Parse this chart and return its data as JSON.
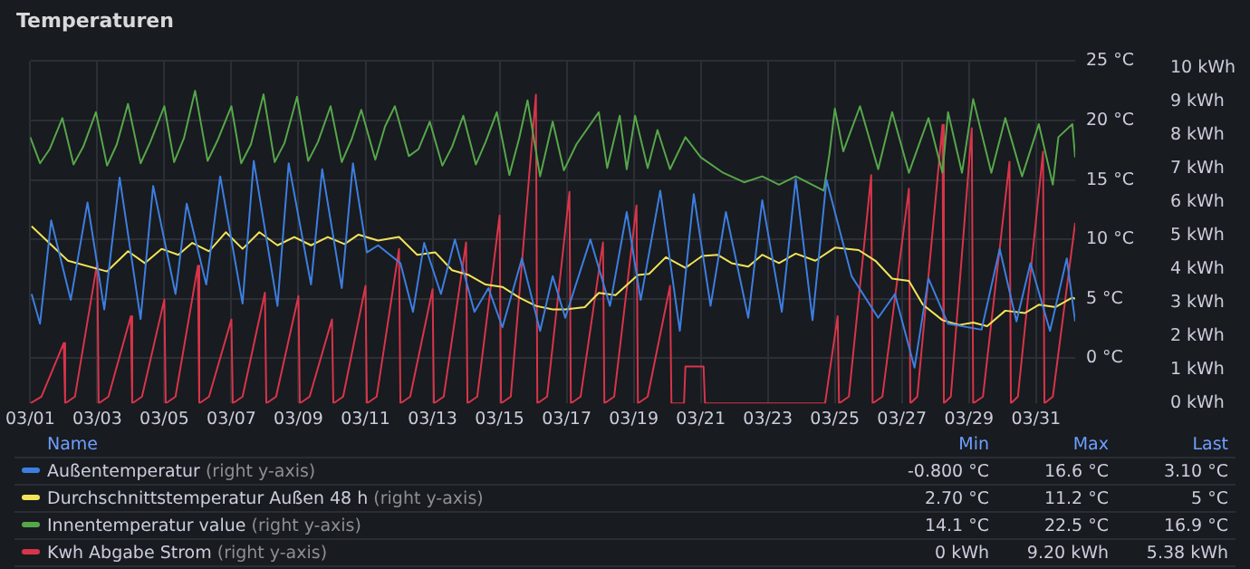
{
  "chart_data": {
    "type": "line",
    "title": "Temperaturen",
    "legend": "bottom",
    "grid": true,
    "marker": "none",
    "line_style": "solid",
    "xlim": [
      "--03-01",
      "--04-01T04:00"
    ],
    "xticks": [
      {
        "value": "--03-01",
        "label": "03/01"
      },
      {
        "value": "--03-03",
        "label": "03/03"
      },
      {
        "value": "--03-05",
        "label": "03/05"
      },
      {
        "value": "--03-07",
        "label": "03/07"
      },
      {
        "value": "--03-09",
        "label": "03/09"
      },
      {
        "value": "--03-11",
        "label": "03/11"
      },
      {
        "value": "--03-13",
        "label": "03/13"
      },
      {
        "value": "--03-15",
        "label": "03/15"
      },
      {
        "value": "--03-17",
        "label": "03/17"
      },
      {
        "value": "--03-19",
        "label": "03/19"
      },
      {
        "value": "--03-21",
        "label": "03/21"
      },
      {
        "value": "--03-23",
        "label": "03/23"
      },
      {
        "value": "--03-25",
        "label": "03/25"
      },
      {
        "value": "--03-27",
        "label": "03/27"
      },
      {
        "value": "--03-29",
        "label": "03/29"
      },
      {
        "value": "--03-31",
        "label": "03/31"
      }
    ],
    "ylim": [
      -3.8,
      25
    ],
    "yticks": [
      {
        "value": 0,
        "label": "0 °C"
      },
      {
        "value": 5,
        "label": "5 °C"
      },
      {
        "value": 10,
        "label": "10 °C"
      },
      {
        "value": 15,
        "label": "15 °C"
      },
      {
        "value": 20,
        "label": "20 °C"
      },
      {
        "value": 25,
        "label": "25 °C"
      }
    ],
    "y2lim": [
      0,
      10.2
    ],
    "y2ticks": [
      {
        "value": 0,
        "label": "0 kWh"
      },
      {
        "value": 1,
        "label": "1 kWh"
      },
      {
        "value": 2,
        "label": "2 kWh"
      },
      {
        "value": 3,
        "label": "3 kWh"
      },
      {
        "value": 4,
        "label": "4 kWh"
      },
      {
        "value": 5,
        "label": "5 kWh"
      },
      {
        "value": 6,
        "label": "6 kWh"
      },
      {
        "value": 7,
        "label": "7 kWh"
      },
      {
        "value": 8,
        "label": "8 kWh"
      },
      {
        "value": 9,
        "label": "9 kWh"
      },
      {
        "value": 10,
        "label": "10 kWh"
      }
    ],
    "annotations": [
      "Name",
      "Min",
      "Max",
      "Last",
      "-0.800 °C",
      "16.6 °C",
      "3.10 °C",
      "2.70 °C",
      "11.2 °C",
      "5 °C",
      "14.1 °C",
      "22.5 °C",
      "16.9 °C",
      "0 kWh",
      "9.20 kWh",
      "5.38 kWh"
    ],
    "series": [
      {
        "name": "Außentemperatur (right y-axis)",
        "color": "#3d7ee0",
        "x": [
          "--03-01T01:00",
          "--03-01T07:00",
          "--03-01T15:00",
          "--03-02T05:00",
          "--03-02T17:00",
          "--03-03T05:00",
          "--03-03T16:00",
          "--03-04T07:00",
          "--03-04T16:00",
          "--03-05T08:00",
          "--03-05T16:00",
          "--03-06T06:00",
          "--03-06T16:00",
          "--03-07T08:00",
          "--03-07T16:00",
          "--03-08T09:00",
          "--03-08T17:00",
          "--03-09T09:00",
          "--03-09T17:00",
          "--03-10T07:00",
          "--03-10T15:00",
          "--03-11T01:00",
          "--03-11T09:00",
          "--03-12T01:00",
          "--03-12T10:00",
          "--03-12T18:00",
          "--03-13T06:00",
          "--03-13T16:00",
          "--03-14T06:00",
          "--03-14T16:00",
          "--03-15T02:00",
          "--03-15T16:00",
          "--03-16T05:00",
          "--03-16T14:00",
          "--03-16T23:00",
          "--03-17T17:00",
          "--03-18T07:00",
          "--03-18T19:00",
          "--03-19T05:00",
          "--03-19T19:00",
          "--03-20T09:00",
          "--03-20T19:00",
          "--03-21T07:00",
          "--03-21T18:00",
          "--03-22T10:00",
          "--03-22T20:00",
          "--03-23T10:00",
          "--03-23T20:00",
          "--03-24T08:00",
          "--03-24T18:00",
          "--03-25T12:00",
          "--03-26T07:00",
          "--03-26T19:00",
          "--03-27T09:00",
          "--03-27T19:00",
          "--03-28T09:00",
          "--03-29T09:00",
          "--03-29T22:00",
          "--03-30T10:00",
          "--03-30T20:00",
          "--03-31T10:00",
          "--03-31T22:00",
          "--04-01T04:00"
        ],
        "values": [
          5.4,
          2.9,
          11.6,
          4.9,
          13.1,
          4.1,
          15.2,
          3.3,
          14.5,
          5.4,
          13.0,
          6.2,
          15.3,
          4.6,
          16.6,
          4.4,
          16.4,
          6.2,
          15.9,
          5.9,
          16.4,
          8.9,
          9.5,
          8.0,
          3.9,
          9.7,
          5.4,
          10.0,
          3.9,
          5.9,
          2.6,
          8.4,
          2.3,
          6.9,
          3.4,
          10.0,
          4.4,
          12.3,
          4.9,
          14.1,
          2.3,
          13.8,
          4.4,
          12.3,
          3.4,
          13.3,
          3.9,
          15.1,
          3.2,
          15.0,
          6.9,
          3.4,
          5.4,
          -0.8,
          6.7,
          2.9,
          2.4,
          9.2,
          3.1,
          8.0,
          2.3,
          8.4,
          3.1
        ]
      },
      {
        "name": "Durchschnittstemperatur Außen 48 h (right y-axis)",
        "color": "#f2e35a",
        "x": [
          "--03-01T01:00",
          "--03-02T03:00",
          "--03-03T07:00",
          "--03-03T22:00",
          "--03-04T10:00",
          "--03-04T22:00",
          "--03-05T10:00",
          "--03-05T20:00",
          "--03-06T08:00",
          "--03-06T20:00",
          "--03-07T08:00",
          "--03-07T20:00",
          "--03-08T09:00",
          "--03-08T21:00",
          "--03-09T09:00",
          "--03-09T21:00",
          "--03-10T09:00",
          "--03-10T19:00",
          "--03-11T09:00",
          "--03-12T00:00",
          "--03-12T13:00",
          "--03-13T02:00",
          "--03-13T14:00",
          "--03-14T02:00",
          "--03-14T14:00",
          "--03-15T02:00",
          "--03-15T14:00",
          "--03-16T02:00",
          "--03-16T14:00",
          "--03-16T23:00",
          "--03-17T13:00",
          "--03-17T23:00",
          "--03-18T11:00",
          "--03-19T03:00",
          "--03-19T11:00",
          "--03-19T23:00",
          "--03-20T13:00",
          "--03-21T01:00",
          "--03-21T12:00",
          "--03-21T22:00",
          "--03-22T10:00",
          "--03-22T20:00",
          "--03-23T08:00",
          "--03-23T20:00",
          "--03-24T10:00",
          "--03-25T00:00",
          "--03-25T17:00",
          "--03-26T05:00",
          "--03-26T17:00",
          "--03-27T05:00",
          "--03-27T15:00",
          "--03-28T05:00",
          "--03-28T17:00",
          "--03-29T03:00",
          "--03-29T13:00",
          "--03-30T02:00",
          "--03-30T16:00",
          "--03-31T02:00",
          "--03-31T14:00",
          "--04-01T02:00",
          "--04-01T04:00"
        ],
        "values": [
          11.1,
          8.2,
          7.3,
          9.0,
          8.0,
          9.2,
          8.7,
          9.7,
          9.0,
          10.6,
          9.2,
          10.6,
          9.5,
          10.2,
          9.5,
          10.2,
          9.6,
          10.4,
          9.9,
          10.2,
          8.7,
          8.9,
          7.4,
          7.0,
          6.2,
          6.0,
          5.1,
          4.4,
          4.1,
          4.1,
          4.3,
          5.5,
          5.3,
          7.0,
          7.1,
          8.5,
          7.6,
          8.6,
          8.7,
          8.0,
          7.7,
          8.7,
          8.0,
          8.8,
          8.2,
          9.3,
          9.1,
          8.2,
          6.7,
          6.5,
          4.5,
          3.2,
          2.8,
          3.0,
          2.7,
          4.0,
          3.8,
          4.5,
          4.3,
          5.1,
          5.0
        ]
      },
      {
        "name": "Innentemperatur value (right y-axis)",
        "color": "#56a64b",
        "x": [
          "--03-01T00:00",
          "--03-01T07:00",
          "--03-01T14:00",
          "--03-01T23:00",
          "--03-02T07:00",
          "--03-02T14:00",
          "--03-02T23:00",
          "--03-03T07:00",
          "--03-03T14:00",
          "--03-03T22:00",
          "--03-04T07:00",
          "--03-04T14:00",
          "--03-05T00:00",
          "--03-05T07:00",
          "--03-05T14:00",
          "--03-05T22:00",
          "--03-06T07:00",
          "--03-06T14:00",
          "--03-07T00:00",
          "--03-07T07:00",
          "--03-07T14:00",
          "--03-07T23:00",
          "--03-08T07:00",
          "--03-08T14:00",
          "--03-08T23:00",
          "--03-09T07:00",
          "--03-09T14:00",
          "--03-09T23:00",
          "--03-10T07:00",
          "--03-10T14:00",
          "--03-10T21:00",
          "--03-11T07:00",
          "--03-11T14:00",
          "--03-11T21:00",
          "--03-12T07:00",
          "--03-12T14:00",
          "--03-12T22:00",
          "--03-13T07:00",
          "--03-13T14:00",
          "--03-13T22:00",
          "--03-14T07:00",
          "--03-14T14:00",
          "--03-14T22:00",
          "--03-15T07:00",
          "--03-15T14:00",
          "--03-15T20:00",
          "--03-16T05:00",
          "--03-16T14:00",
          "--03-16T22:00",
          "--03-17T07:00",
          "--03-17T23:00",
          "--03-18T05:00",
          "--03-18T14:00",
          "--03-18T19:00",
          "--03-19T01:00",
          "--03-19T10:00",
          "--03-19T17:00",
          "--03-20T02:00",
          "--03-20T13:00",
          "--03-21T00:00",
          "--03-21T16:00",
          "--03-22T07:00",
          "--03-22T20:00",
          "--03-23T08:00",
          "--03-23T20:00",
          "--03-24T16:00",
          "--03-24T20:00",
          "--03-25T00:00",
          "--03-25T06:00",
          "--03-25T18:00",
          "--03-26T07:00",
          "--03-26T17:00",
          "--03-27T05:00",
          "--03-27T19:00",
          "--03-28T05:00",
          "--03-28T09:00",
          "--03-28T19:00",
          "--03-29T03:00",
          "--03-29T16:00",
          "--03-30T02:00",
          "--03-30T14:00",
          "--03-31T02:00",
          "--03-31T12:00",
          "--03-31T16:00",
          "--04-01T02:00",
          "--04-01T04:00"
        ],
        "values": [
          18.6,
          16.4,
          17.6,
          20.2,
          16.3,
          17.8,
          20.7,
          16.2,
          18.0,
          21.4,
          16.4,
          18.2,
          21.2,
          16.5,
          18.5,
          22.5,
          16.6,
          18.3,
          21.2,
          16.4,
          18.0,
          22.2,
          16.5,
          18.1,
          22.0,
          16.6,
          18.2,
          21.2,
          16.5,
          18.4,
          20.9,
          16.7,
          19.5,
          21.2,
          17.0,
          17.6,
          19.9,
          16.2,
          17.8,
          20.4,
          16.3,
          18.2,
          20.7,
          15.4,
          18.5,
          21.7,
          15.3,
          19.9,
          15.8,
          18.0,
          20.7,
          16.0,
          20.4,
          15.9,
          20.4,
          16.0,
          19.2,
          15.9,
          18.6,
          16.9,
          15.6,
          14.8,
          15.3,
          14.6,
          15.3,
          14.1,
          17.1,
          21.0,
          17.4,
          21.2,
          15.9,
          20.7,
          15.6,
          20.2,
          15.6,
          20.7,
          15.6,
          21.8,
          15.6,
          20.2,
          15.3,
          19.7,
          14.6,
          18.6,
          19.7,
          16.9
        ]
      },
      {
        "name": "Kwh Abgabe Strom (right y-axis)",
        "color": "#d8344a",
        "axis": "y2",
        "x": [
          "--03-01T00:00",
          "--03-01T08:00",
          "--03-02T00:00",
          "--03-02T01:00",
          "--03-02T08:00",
          "--03-03T00:00",
          "--03-03T01:00",
          "--03-03T08:00",
          "--03-04T00:00",
          "--03-04T01:00",
          "--03-04T08:00",
          "--03-05T00:00",
          "--03-05T01:00",
          "--03-05T08:00",
          "--03-06T00:00",
          "--03-06T01:00",
          "--03-06T08:00",
          "--03-07T00:00",
          "--03-07T01:00",
          "--03-07T08:00",
          "--03-08T00:00",
          "--03-08T01:00",
          "--03-08T08:00",
          "--03-09T00:00",
          "--03-09T01:00",
          "--03-09T08:00",
          "--03-10T00:00",
          "--03-10T01:00",
          "--03-10T08:00",
          "--03-11T00:00",
          "--03-11T01:00",
          "--03-11T08:00",
          "--03-12T00:00",
          "--03-12T01:00",
          "--03-12T08:00",
          "--03-13T00:00",
          "--03-13T01:00",
          "--03-13T08:00",
          "--03-14T00:00",
          "--03-14T01:00",
          "--03-14T08:00",
          "--03-15T00:00",
          "--03-15T01:00",
          "--03-15T08:00",
          "--03-16T02:00",
          "--03-16T03:00",
          "--03-16T10:00",
          "--03-17T02:00",
          "--03-17T03:00",
          "--03-17T10:00",
          "--03-18T02:00",
          "--03-18T03:00",
          "--03-18T10:00",
          "--03-19T02:00",
          "--03-19T03:00",
          "--03-19T10:00",
          "--03-20T02:00",
          "--03-20T03:00",
          "--03-20T12:00",
          "--03-20T13:00",
          "--03-21T02:00",
          "--03-21T03:00",
          "--03-24T17:00",
          "--03-25T02:00",
          "--03-25T03:00",
          "--03-25T10:00",
          "--03-26T02:00",
          "--03-26T03:00",
          "--03-26T10:00",
          "--03-27T05:00",
          "--03-27T06:00",
          "--03-27T11:00",
          "--03-28T05:00",
          "--03-28T06:00",
          "--03-28T11:00",
          "--03-29T02:00",
          "--03-29T03:00",
          "--03-29T10:00",
          "--03-30T05:00",
          "--03-30T06:00",
          "--03-30T11:00",
          "--03-31T05:00",
          "--03-31T06:00",
          "--03-31T12:00",
          "--04-01T04:00"
        ],
        "values": [
          0,
          0.2,
          1.8,
          0,
          0.2,
          4.2,
          0,
          0.2,
          2.6,
          0,
          0.2,
          3.1,
          0,
          0.2,
          4.1,
          0,
          0.2,
          2.5,
          0,
          0.2,
          3.3,
          0,
          0.2,
          3.2,
          0,
          0.2,
          2.5,
          0,
          0.2,
          3.5,
          0,
          0.2,
          4.6,
          0,
          0.2,
          3.4,
          0,
          0.2,
          4.8,
          0,
          0.2,
          5.6,
          0,
          0.2,
          9.2,
          0,
          0.2,
          6.3,
          0,
          0.2,
          4.8,
          0,
          0.2,
          5.9,
          0,
          0.2,
          3.5,
          0,
          0,
          1.1,
          1.1,
          0,
          0,
          2.6,
          0,
          0.2,
          6.8,
          0,
          0.2,
          6.4,
          0,
          0.2,
          8.3,
          0,
          0.2,
          8.2,
          0,
          0.2,
          7.2,
          0,
          0.2,
          7.5,
          0,
          0.2,
          5.38
        ]
      }
    ]
  }
}
